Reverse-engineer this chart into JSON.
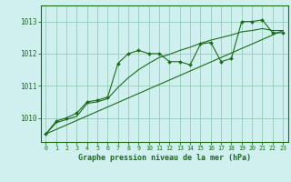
{
  "title": "Graphe pression niveau de la mer (hPa)",
  "bg_color": "#cff0ee",
  "grid_color": "#99ccbb",
  "line_color": "#1a6b1a",
  "xlim": [
    -0.5,
    23.5
  ],
  "ylim": [
    1009.25,
    1013.5
  ],
  "yticks": [
    1010,
    1011,
    1012,
    1013
  ],
  "xticks": [
    0,
    1,
    2,
    3,
    4,
    5,
    6,
    7,
    8,
    9,
    10,
    11,
    12,
    13,
    14,
    15,
    16,
    17,
    18,
    19,
    20,
    21,
    22,
    23
  ],
  "series_main": {
    "x": [
      0,
      1,
      2,
      3,
      4,
      5,
      6,
      7,
      8,
      9,
      10,
      11,
      12,
      13,
      14,
      15,
      16,
      17,
      18,
      19,
      20,
      21,
      22,
      23
    ],
    "y": [
      1009.5,
      1009.9,
      1010.0,
      1010.15,
      1010.5,
      1010.55,
      1010.65,
      1011.7,
      1012.0,
      1012.1,
      1012.0,
      1012.0,
      1011.75,
      1011.75,
      1011.65,
      1012.3,
      1012.35,
      1011.75,
      1011.85,
      1013.0,
      1013.0,
      1013.05,
      1012.65,
      1012.65
    ]
  },
  "series_trend": {
    "x": [
      0,
      1,
      2,
      3,
      4,
      5,
      6,
      7,
      8,
      9,
      10,
      11,
      12,
      13,
      14,
      15,
      16,
      17,
      18,
      19,
      20,
      21,
      22,
      23
    ],
    "y": [
      1009.5,
      1009.85,
      1009.95,
      1010.05,
      1010.45,
      1010.5,
      1010.6,
      1010.95,
      1011.25,
      1011.5,
      1011.7,
      1011.88,
      1011.98,
      1012.1,
      1012.2,
      1012.32,
      1012.42,
      1012.5,
      1012.58,
      1012.68,
      1012.72,
      1012.78,
      1012.72,
      1012.72
    ]
  },
  "series_straight": {
    "x": [
      0,
      23
    ],
    "y": [
      1009.5,
      1012.72
    ]
  }
}
